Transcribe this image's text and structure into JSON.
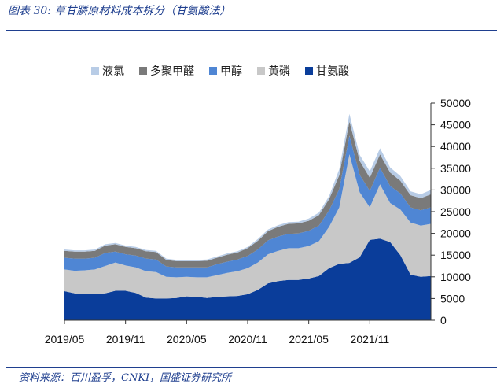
{
  "title": "图表 30: 草甘膦原材料成本拆分（甘氨酸法）",
  "source": "资料来源：百川盈孚，CNKI，国盛证券研究所",
  "chart_data": {
    "type": "area",
    "stacked": true,
    "title": "",
    "xlabel": "",
    "ylabel": "",
    "ylim": [
      0,
      50000
    ],
    "yticks": [
      0,
      5000,
      10000,
      15000,
      20000,
      25000,
      30000,
      35000,
      40000,
      45000,
      50000
    ],
    "xticks": [
      "2019/05",
      "2019/11",
      "2020/05",
      "2020/11",
      "2021/05",
      "2021/11"
    ],
    "xlim": [
      "2019/05",
      "2022/05"
    ],
    "grid": false,
    "legend_position": "top",
    "x": [
      "2019/05",
      "2019/06",
      "2019/07",
      "2019/08",
      "2019/09",
      "2019/10",
      "2019/11",
      "2019/12",
      "2020/01",
      "2020/02",
      "2020/03",
      "2020/04",
      "2020/05",
      "2020/06",
      "2020/07",
      "2020/08",
      "2020/09",
      "2020/10",
      "2020/11",
      "2020/12",
      "2021/01",
      "2021/02",
      "2021/03",
      "2021/04",
      "2021/05",
      "2021/06",
      "2021/07",
      "2021/08",
      "2021/09",
      "2021/10",
      "2021/11",
      "2021/12",
      "2022/01",
      "2022/02",
      "2022/03",
      "2022/04",
      "2022/05"
    ],
    "series": [
      {
        "name": "甘氨酸",
        "color": "#0a3d9a",
        "values": [
          6700,
          6200,
          6000,
          6100,
          6200,
          6800,
          6800,
          6300,
          5200,
          5000,
          5000,
          5100,
          5500,
          5400,
          5100,
          5400,
          5500,
          5600,
          6000,
          7000,
          8500,
          9000,
          9300,
          9300,
          9600,
          10200,
          12000,
          13000,
          13200,
          14500,
          18500,
          18800,
          18000,
          15000,
          10500,
          10000,
          10200
        ]
      },
      {
        "name": "黄磷",
        "color": "#c8c8c8",
        "values": [
          5000,
          5200,
          5500,
          5600,
          6300,
          6500,
          5800,
          5900,
          6100,
          6100,
          5000,
          4800,
          4500,
          4500,
          4800,
          5000,
          5400,
          5700,
          6000,
          6300,
          6700,
          7000,
          7300,
          7300,
          7500,
          8000,
          9500,
          13000,
          25000,
          15000,
          7500,
          12500,
          9000,
          10500,
          12000,
          11800,
          12000
        ]
      },
      {
        "name": "甲醇",
        "color": "#4f86d4",
        "values": [
          2700,
          2800,
          2700,
          2700,
          3000,
          2500,
          2600,
          2700,
          2900,
          2900,
          2400,
          2300,
          2200,
          2300,
          2300,
          2500,
          2600,
          2700,
          2800,
          3000,
          3200,
          3300,
          3300,
          3400,
          3500,
          3600,
          3800,
          4200,
          4300,
          4000,
          3800,
          3800,
          3900,
          3700,
          3500,
          3500,
          3800
        ]
      },
      {
        "name": "多聚甲醛",
        "color": "#7a7a7a",
        "values": [
          1600,
          1600,
          1600,
          1600,
          1700,
          1700,
          1700,
          1700,
          1700,
          1700,
          1500,
          1400,
          1400,
          1400,
          1500,
          1500,
          1600,
          1600,
          1800,
          2000,
          2100,
          2200,
          2300,
          2300,
          2300,
          2400,
          2600,
          3200,
          3300,
          3200,
          3000,
          3100,
          3100,
          2900,
          2800,
          2800,
          3000
        ]
      },
      {
        "name": "液氯",
        "color": "#b8cce6",
        "values": [
          300,
          300,
          300,
          300,
          300,
          300,
          300,
          300,
          300,
          300,
          300,
          300,
          300,
          300,
          300,
          300,
          300,
          300,
          300,
          400,
          400,
          400,
          400,
          400,
          500,
          600,
          700,
          1400,
          1700,
          1400,
          1500,
          1400,
          1200,
          1100,
          900,
          900,
          1000
        ]
      }
    ]
  }
}
